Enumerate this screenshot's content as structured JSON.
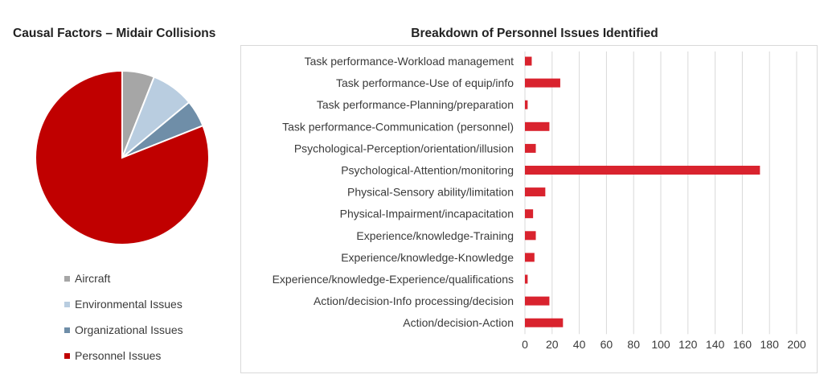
{
  "chart_data": [
    {
      "type": "pie",
      "title": "Causal Factors – Midair Collisions",
      "categories": [
        "Aircraft",
        "Environmental Issues",
        "Organizational Issues",
        "Personnel Issues"
      ],
      "values": [
        6,
        8,
        5,
        81
      ],
      "colors": [
        "#a6a6a6",
        "#b9cde0",
        "#6f8ea8",
        "#c00000"
      ],
      "legend": "bottom"
    },
    {
      "type": "bar",
      "orientation": "horizontal",
      "title": "Breakdown of Personnel Issues Identified",
      "categories": [
        "Task performance-Workload management",
        "Task performance-Use of equip/info",
        "Task performance-Planning/preparation",
        "Task performance-Communication (personnel)",
        "Psychological-Perception/orientation/illusion",
        "Psychological-Attention/monitoring",
        "Physical-Sensory ability/limitation",
        "Physical-Impairment/incapacitation",
        "Experience/knowledge-Training",
        "Experience/knowledge-Knowledge",
        "Experience/knowledge-Experience/qualifications",
        "Action/decision-Info processing/decision",
        "Action/decision-Action"
      ],
      "values": [
        5,
        26,
        2,
        18,
        8,
        173,
        15,
        6,
        8,
        7,
        2,
        18,
        28
      ],
      "xlim": [
        0,
        200
      ],
      "xticks": [
        "0",
        "20",
        "40",
        "60",
        "80",
        "100",
        "120",
        "140",
        "160",
        "180",
        "200"
      ],
      "color": "#d9232e",
      "grid": "vertical",
      "legend": "none"
    }
  ]
}
